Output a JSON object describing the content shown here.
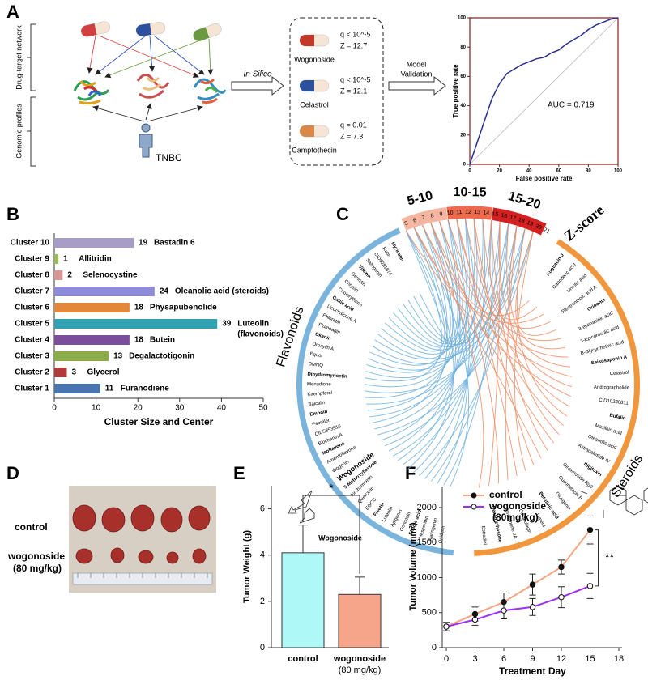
{
  "panel_labels": [
    "A",
    "B",
    "C",
    "D",
    "E",
    "F"
  ],
  "diagram": {
    "brackets": [
      "Drug-target network",
      "Genomic profiles"
    ],
    "patient": "TNBC",
    "step1": "In Silico",
    "step2": [
      "Model",
      "Validation"
    ],
    "drugs": [
      {
        "name": "Wogonoside",
        "q": "q < 10^-5",
        "z": "Z = 12.7",
        "color": "#c0392b"
      },
      {
        "name": "Celastrol",
        "q": "q < 10^-5",
        "z": "Z = 12.1",
        "color": "#2c4f9e"
      },
      {
        "name": "Camptothecin",
        "q": "q = 0.01",
        "z": "Z = 7.3",
        "color": "#d8894a"
      }
    ]
  },
  "chart_data": [
    {
      "type": "line",
      "xlabel": "False positive rate",
      "ylabel": "True positive rate",
      "annotation": "AUC = 0.719",
      "x": [
        0,
        5,
        10,
        15,
        20,
        25,
        30,
        35,
        40,
        45,
        50,
        55,
        60,
        65,
        70,
        75,
        80,
        85,
        90,
        95,
        100
      ],
      "values": [
        0,
        15,
        30,
        45,
        55,
        62,
        65,
        68,
        70,
        72,
        73,
        76,
        78,
        82,
        85,
        88,
        92,
        95,
        97,
        99,
        100
      ],
      "color": "#2b2f8f",
      "xlim": [
        0,
        100
      ],
      "ylim": [
        0,
        100
      ],
      "xticks": [
        0,
        20,
        40,
        60,
        80,
        100
      ],
      "yticks": [
        0,
        20,
        40,
        60,
        80,
        100
      ]
    },
    {
      "type": "hbar",
      "xlabel": "Cluster Size and Center",
      "categories": [
        "Cluster 1",
        "Cluster 2",
        "Cluster 3",
        "Cluster 4",
        "Cluster 5",
        "Cluster 6",
        "Cluster 7",
        "Cluster 8",
        "Cluster 9",
        "Cluster 10"
      ],
      "values": [
        11,
        3,
        13,
        18,
        39,
        18,
        24,
        2,
        1,
        19
      ],
      "colors": [
        "#4a74b0",
        "#b03a3a",
        "#8cac4a",
        "#7a4e9a",
        "#31a0b0",
        "#e3883a",
        "#8e8cd8",
        "#d99694",
        "#9bbb59",
        "#a89cc8"
      ],
      "centers": [
        "Furanodiene",
        "Glycerol",
        "Degalactotigonin",
        "Butein",
        [
          "Luteolin",
          "(flavonoids)"
        ],
        "Physapubenolide",
        "Oleanolic acid (steroids)",
        "Selenocystine",
        "Allitridin",
        "Bastadin 6"
      ],
      "center_colors": [
        "#000",
        "#000",
        "#000",
        "#000",
        "#e02020",
        "#000",
        "#e02020",
        "#000",
        "#000",
        "#000"
      ],
      "xlim": [
        0,
        50
      ],
      "xticks": [
        0,
        10,
        20,
        30,
        40,
        50
      ]
    },
    {
      "type": "bar",
      "ylabel": "Tumor Weight (g)",
      "categories": [
        [
          "control"
        ],
        [
          "wogonoside",
          "(80 mg/kg)"
        ]
      ],
      "values": [
        4.1,
        2.3
      ],
      "errors": [
        1.2,
        0.75
      ],
      "colors": [
        "#aef8f8",
        "#f6a48a"
      ],
      "ylim": [
        0,
        7
      ],
      "yticks": [
        0,
        2,
        4,
        6
      ],
      "significance": "*"
    },
    {
      "type": "line",
      "xlabel": "Treatment Day",
      "ylabel": "Tumor Volume (mm³)",
      "x": [
        0,
        3,
        6,
        9,
        12,
        15
      ],
      "series": [
        {
          "name": [
            "control"
          ],
          "color": "#f4a582",
          "marker": "filled",
          "values": [
            300,
            480,
            650,
            900,
            1150,
            1680
          ],
          "errors": [
            60,
            100,
            130,
            150,
            100,
            200
          ]
        },
        {
          "name": [
            "wogonoside",
            "(80mg/kg)"
          ],
          "color": "#9b30ff",
          "marker": "open",
          "values": [
            300,
            400,
            530,
            580,
            720,
            880
          ],
          "errors": [
            60,
            80,
            120,
            120,
            150,
            180
          ]
        }
      ],
      "xlim": [
        0,
        18
      ],
      "ylim": [
        0,
        2300
      ],
      "xticks": [
        0,
        3,
        6,
        9,
        12,
        15,
        18
      ],
      "yticks": [
        0,
        500,
        1000,
        1500,
        2000
      ],
      "significance": "**"
    }
  ],
  "chord": {
    "groups": [
      "Flavonoids",
      "Steroids"
    ],
    "scale_title": "Z-score",
    "bins": [
      "5-10",
      "10-15",
      "15-20"
    ],
    "bin_colors": [
      "#f4b6a0",
      "#ef6a4c",
      "#d42020"
    ],
    "scale_ticks": [
      5,
      6,
      7,
      8,
      9,
      10,
      11,
      12,
      13,
      14,
      15,
      16,
      17,
      18,
      19,
      20,
      21
    ],
    "flavonoids": [
      "Myricetin",
      "Rutin",
      "CID5281674",
      "Salvigenin",
      "Vitexin",
      "Genistin",
      "Chrysin",
      "Cholorythene",
      "Gallic acid",
      "Licochalcone A",
      "Phloretin",
      "Plumbagin",
      "Okanin",
      "Oroxylin A",
      "Equol",
      "DMNQ",
      "Dihydromyricetin",
      "Menadione",
      "Kaempferol",
      "Baicalin",
      "Emodin",
      "Psoralen",
      "CID5353516",
      "Biochanin A",
      "Isoflavone",
      "Amentoflavone",
      "Wogonin",
      "Wogonoside",
      "5-Methoxyflavone",
      "Isorhamnetin",
      "Quercetin",
      "EGCG",
      "Fisetin",
      "Luteolin",
      "Apigenin",
      "Genistein",
      "Ellagic acid",
      "Hesperidin",
      "Naringenin",
      "Daidzein"
    ],
    "steroids": [
      "Kuguacin J",
      "Ganoderic acid",
      "Ursolic acid",
      "Plectranthoic acid A",
      "Oridonin",
      "3-epimasinic acid",
      "3-Epicorosolic acid",
      "B-Glycyrrhetinic acid",
      "Saikosaponin A",
      "Celastrol",
      "Andrographolide",
      "CID10230811",
      "Bufalin",
      "Maslinic acid",
      "Oleanolic acid",
      "Astragaloside IV",
      "Digitoxin",
      "Ginsenoside Rg3",
      "Cucurbitacin B",
      "Diosgenin",
      "Betulinic acid",
      "Lupeol",
      "Cinobufagin",
      "Tanshinone IIA",
      "Dexamethasone",
      "Estradiol"
    ],
    "highlight_index": 27,
    "structure_label": "Wogonoside"
  },
  "photo": {
    "row_labels": [
      "control",
      "wogonoside",
      "(80 mg/kg)"
    ]
  }
}
